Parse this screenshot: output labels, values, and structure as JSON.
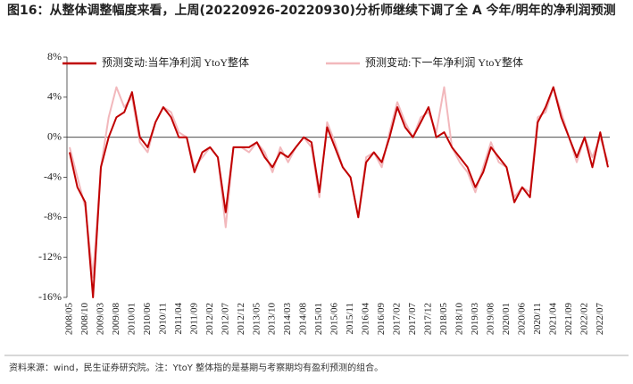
{
  "chart_data": {
    "type": "line",
    "title": "图16：从整体调整幅度来看，上周(20220926-20220930)分析师继续下调了全 A 今年/明年的净利润预测",
    "source": "资料来源：wind，民生证券研究院。注：YtoY 整体指的是基期与考察期均有盈利预测的组合。",
    "categories": [
      "2008/05",
      null,
      "2008/10",
      null,
      "2009/03",
      null,
      "2009/08",
      null,
      "2010/01",
      null,
      "2010/06",
      null,
      "2010/11",
      null,
      "2011/04",
      null,
      "2011/09",
      null,
      "2012/02",
      null,
      "2012/07",
      null,
      "2012/12",
      null,
      "2013/05",
      null,
      "2013/10",
      null,
      "2014/03",
      null,
      "2014/08",
      null,
      "2015/01",
      null,
      "2015/06",
      null,
      "2015/11",
      null,
      "2016/04",
      null,
      "2016/09",
      null,
      "2017/02",
      null,
      "2017/07",
      null,
      "2017/12",
      null,
      "2018/05",
      null,
      "2018/10",
      null,
      "2019/03",
      null,
      "2019/08",
      null,
      "2020/01",
      null,
      "2020/06",
      null,
      "2020/11",
      null,
      "2021/04",
      null,
      "2021/09",
      null,
      "2022/02",
      null,
      "2022/07",
      null
    ],
    "series": [
      {
        "name": "预测变动:当年净利润 YtoY整体",
        "color": "#c00000",
        "values": [
          -1.5,
          -5,
          -6.5,
          -16,
          -3,
          0,
          2,
          2.5,
          4.5,
          0,
          -1,
          1.5,
          3,
          2,
          0,
          0,
          -3.5,
          -1.5,
          -1,
          -2,
          -7.5,
          -1,
          -1,
          -1,
          -0.5,
          -2,
          -3,
          -1.5,
          -2,
          -1,
          0,
          -0.5,
          -5.5,
          1,
          -1,
          -3,
          -4,
          -8,
          -2.5,
          -1.5,
          -2.5,
          0,
          3,
          1,
          0,
          1.5,
          3,
          0,
          0.5,
          -1,
          -2,
          -3,
          -5,
          -3.5,
          -1,
          -2,
          -3,
          -6.5,
          -5,
          -6,
          1.5,
          3,
          5,
          2,
          0,
          -2,
          0,
          -3,
          0.5,
          -3
        ]
      },
      {
        "name": "预测变动:下一年净利润 YtoY整体",
        "color": "#f2b8bc",
        "values": [
          -1,
          -4,
          -7,
          -14,
          -3,
          2,
          5,
          3,
          4,
          -0.5,
          -1.5,
          1.5,
          3,
          2.5,
          0.5,
          0,
          -3,
          -2,
          -1,
          -2,
          -9,
          -1,
          -1,
          -1.5,
          -0.5,
          -1.5,
          -3.5,
          -1,
          -2.5,
          -1,
          0,
          -1,
          -6,
          1.5,
          -0.5,
          -3,
          -4,
          -8,
          -2,
          -1.5,
          -3,
          0.5,
          3.5,
          1.5,
          0,
          2,
          2.5,
          0.5,
          5,
          -1,
          -2.5,
          -3.5,
          -5.5,
          -3,
          -0.5,
          -2.5,
          -3,
          -6,
          -5,
          -5.5,
          2,
          2.5,
          5,
          2.5,
          0,
          -2.5,
          0,
          -2,
          0,
          -2.5
        ]
      }
    ],
    "ylim": [
      -16,
      8
    ],
    "yticks": [
      {
        "value": -16,
        "label": "-16%"
      },
      {
        "value": -12,
        "label": "-12%"
      },
      {
        "value": -8,
        "label": "-8%"
      },
      {
        "value": -4,
        "label": "-4%"
      },
      {
        "value": 0,
        "label": "0%"
      },
      {
        "value": 4,
        "label": "4%"
      },
      {
        "value": 8,
        "label": "8%"
      }
    ],
    "legend": "top"
  }
}
